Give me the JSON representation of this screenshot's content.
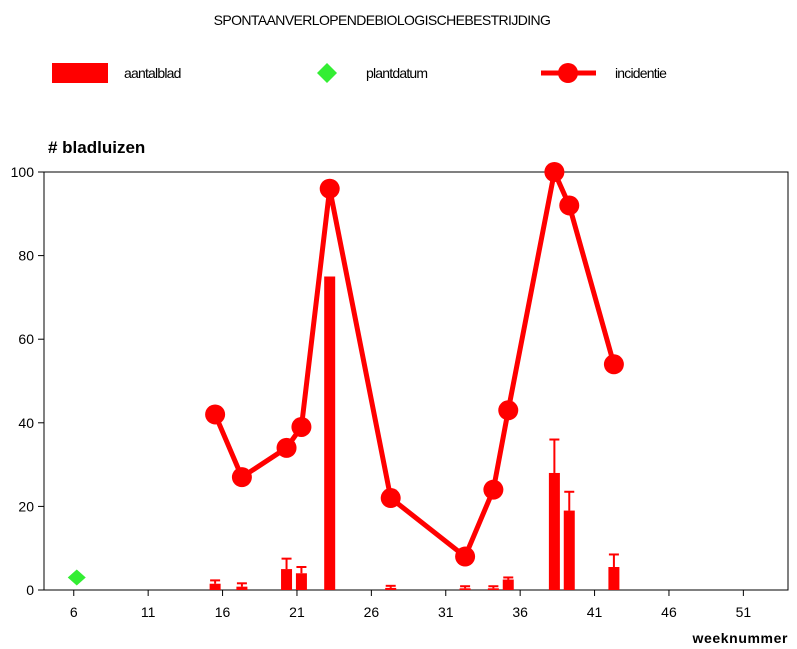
{
  "chart_data": {
    "type": "bar+line",
    "title": "SPONTAANVERLOPENDEBIOLOGISCHEBESTRIJDING",
    "ylabel": "# bladluizen",
    "xlabel": "weeknummer",
    "xlim": [
      4,
      54
    ],
    "ylim": [
      0,
      100
    ],
    "xticks": [
      6,
      11,
      16,
      21,
      26,
      31,
      36,
      41,
      46,
      51
    ],
    "yticks": [
      0,
      20,
      40,
      60,
      80,
      100
    ],
    "grid": false,
    "legend_position": "top",
    "legend": {
      "bars": "aantalblad",
      "marker": "plantdatum",
      "line": "incidentie"
    },
    "colors": {
      "bars": "#ff0000",
      "line": "#ff0000",
      "marker": "#33ee33"
    },
    "plantdatum": {
      "x": 6.2,
      "y": 3
    },
    "bars": [
      {
        "x": 15.5,
        "value": 1.5,
        "err": 0.8
      },
      {
        "x": 17.3,
        "value": 0.8,
        "err": 0.8
      },
      {
        "x": 20.3,
        "value": 5.0,
        "err": 2.5
      },
      {
        "x": 21.3,
        "value": 4.0,
        "err": 1.5
      },
      {
        "x": 23.2,
        "value": 75.0,
        "err": 0
      },
      {
        "x": 27.3,
        "value": 0.5,
        "err": 0.5
      },
      {
        "x": 32.3,
        "value": 0.4,
        "err": 0.5
      },
      {
        "x": 34.2,
        "value": 0.4,
        "err": 0.5
      },
      {
        "x": 35.2,
        "value": 2.5,
        "err": 0.5
      },
      {
        "x": 38.3,
        "value": 28.0,
        "err": 8.0
      },
      {
        "x": 39.3,
        "value": 19.0,
        "err": 4.5
      },
      {
        "x": 42.3,
        "value": 5.5,
        "err": 3.0
      }
    ],
    "series": [
      {
        "name": "incidentie",
        "x": [
          15.5,
          17.3,
          20.3,
          21.3,
          23.2,
          27.3,
          32.3,
          34.2,
          35.2,
          38.3,
          39.3,
          42.3
        ],
        "values": [
          42,
          27,
          34,
          39,
          96,
          22,
          8,
          24,
          43,
          100,
          92,
          54
        ]
      }
    ]
  }
}
